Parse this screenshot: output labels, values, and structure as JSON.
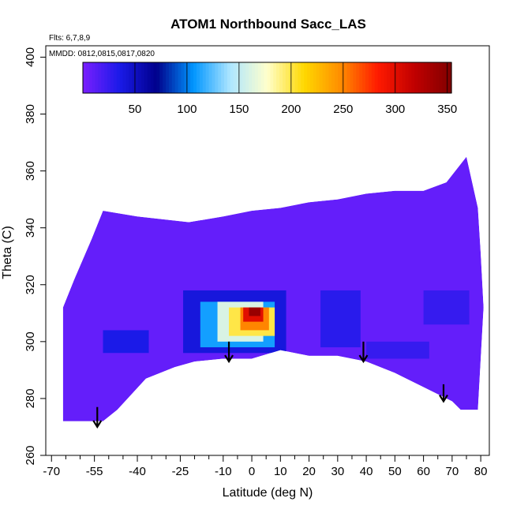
{
  "chart_data": {
    "type": "heatmap",
    "title": "ATOM1 Northbound Sacc_LAS",
    "subtitle_flights": "Flts: 6,7,8,9",
    "subtitle_dates": "MMDD: 0812,0815,0817,0820",
    "xlabel": "Latitude (deg N)",
    "ylabel": "Theta (C)",
    "xlim": [
      -72,
      83
    ],
    "ylim": [
      260,
      404
    ],
    "x_ticks": [
      -70,
      -55,
      -40,
      -25,
      -10,
      0,
      10,
      20,
      30,
      40,
      50,
      60,
      70,
      80
    ],
    "x_tick_labels": [
      "-70",
      "-55",
      "-40",
      "-25",
      "-10",
      "0",
      "10",
      "20",
      "30",
      "40",
      "50",
      "60",
      "70",
      "80"
    ],
    "x_minor_ticks": [
      -65,
      -60,
      -50,
      -45,
      -35,
      -30,
      -20,
      -15,
      -5,
      5,
      15,
      25,
      35,
      45,
      55,
      65,
      75
    ],
    "y_ticks": [
      260,
      280,
      300,
      320,
      340,
      360,
      380,
      400
    ],
    "y_tick_labels": [
      "260",
      "280",
      "300",
      "320",
      "340",
      "360",
      "380",
      "400"
    ],
    "colorbar": {
      "range": [
        0,
        354
      ],
      "ticks": [
        50,
        100,
        150,
        200,
        250,
        300,
        350
      ],
      "tick_labels": [
        "50",
        "100",
        "150",
        "200",
        "250",
        "300",
        "350"
      ],
      "colors": [
        "#7a1fff",
        "#1a1ae8",
        "#00008b",
        "#0096ff",
        "#aee6ff",
        "#ffffcc",
        "#ffd800",
        "#ff8c00",
        "#ff1a00",
        "#c00000",
        "#800000"
      ]
    },
    "surface_boundary": [
      [
        -66,
        272
      ],
      [
        -52,
        272
      ],
      [
        -47,
        276
      ],
      [
        -37,
        287
      ],
      [
        -27,
        291
      ],
      [
        -20,
        293
      ],
      [
        -10,
        294
      ],
      [
        0,
        294
      ],
      [
        10,
        297
      ],
      [
        20,
        295
      ],
      [
        30,
        295
      ],
      [
        40,
        293
      ],
      [
        50,
        289
      ],
      [
        60,
        284
      ],
      [
        70,
        279
      ],
      [
        73,
        276
      ],
      [
        79,
        276
      ]
    ],
    "top_boundary": [
      [
        -66,
        312
      ],
      [
        -62,
        322
      ],
      [
        -56,
        336
      ],
      [
        -52,
        346
      ],
      [
        -40,
        344
      ],
      [
        -22,
        342
      ],
      [
        -10,
        344
      ],
      [
        0,
        346
      ],
      [
        10,
        347
      ],
      [
        20,
        349
      ],
      [
        30,
        350
      ],
      [
        40,
        352
      ],
      [
        50,
        353
      ],
      [
        60,
        353
      ],
      [
        68,
        356
      ],
      [
        75,
        365
      ],
      [
        79,
        347
      ],
      [
        80,
        331
      ],
      [
        81,
        312
      ]
    ],
    "background_value": 8,
    "patches": [
      {
        "x": [
          -24,
          12
        ],
        "y": [
          296,
          318
        ],
        "value": 40
      },
      {
        "x": [
          -52,
          -36
        ],
        "y": [
          296,
          304
        ],
        "value": 35
      },
      {
        "x": [
          24,
          38
        ],
        "y": [
          298,
          318
        ],
        "value": 30
      },
      {
        "x": [
          40,
          62
        ],
        "y": [
          294,
          300
        ],
        "value": 25
      },
      {
        "x": [
          60,
          76
        ],
        "y": [
          306,
          318
        ],
        "value": 25
      },
      {
        "x": [
          -18,
          8
        ],
        "y": [
          298,
          314
        ],
        "value": 110
      },
      {
        "x": [
          -12,
          4
        ],
        "y": [
          300,
          314
        ],
        "value": 160
      },
      {
        "x": [
          -8,
          8
        ],
        "y": [
          302,
          312
        ],
        "value": 200
      },
      {
        "x": [
          -4,
          6
        ],
        "y": [
          304,
          312
        ],
        "value": 250
      },
      {
        "x": [
          -3,
          4
        ],
        "y": [
          307,
          312
        ],
        "value": 300
      },
      {
        "x": [
          -1,
          3
        ],
        "y": [
          309,
          312
        ],
        "value": 340
      }
    ],
    "arrows": [
      {
        "x": -54,
        "y_top": 277,
        "y_tip": 270
      },
      {
        "x": -8,
        "y_top": 300,
        "y_tip": 293
      },
      {
        "x": 39,
        "y_top": 300,
        "y_tip": 293
      },
      {
        "x": 67,
        "y_top": 285,
        "y_tip": 279
      }
    ]
  }
}
